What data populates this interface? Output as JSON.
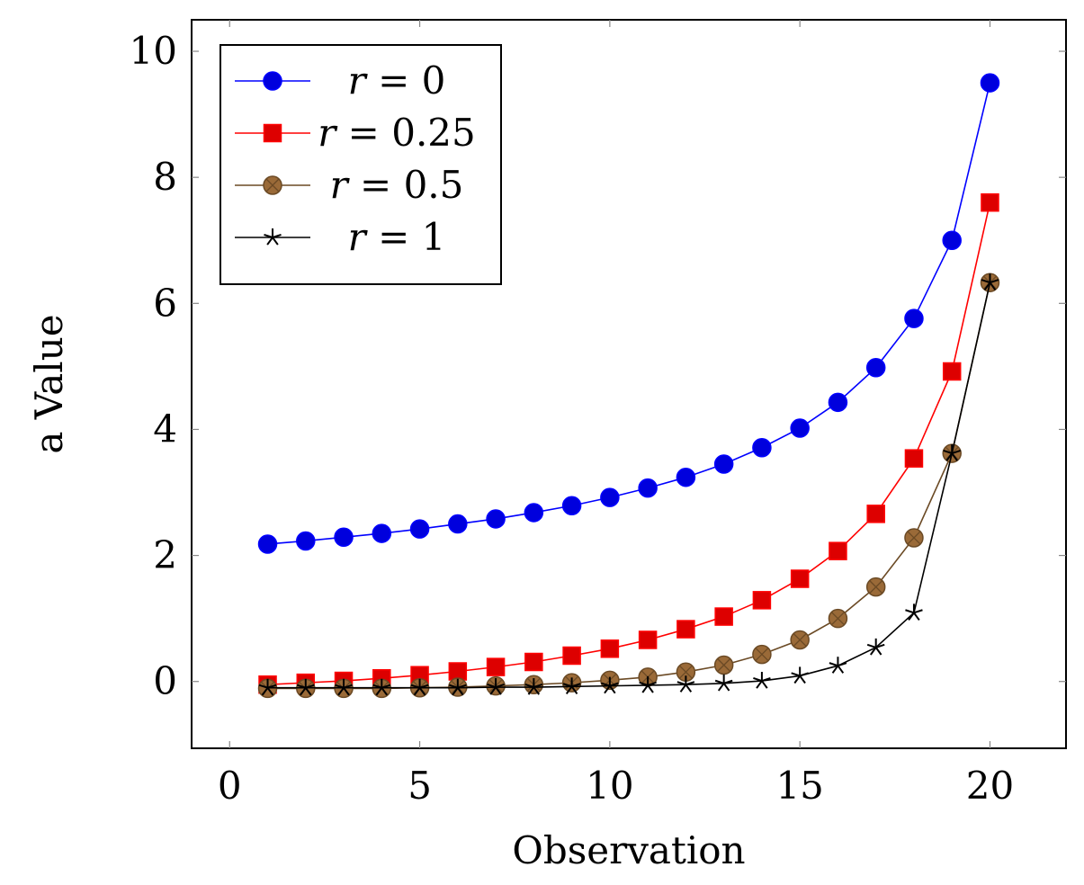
{
  "chart_data": {
    "type": "line",
    "title": "",
    "xlabel": "Observation",
    "ylabel": "a Value",
    "xlim": [
      -1,
      22
    ],
    "ylim": [
      -1.06,
      10.5
    ],
    "xticks": [
      0,
      5,
      10,
      15,
      20
    ],
    "yticks": [
      0,
      2,
      4,
      6,
      8,
      10
    ],
    "xtick_labels": [
      "0",
      "5",
      "10",
      "15",
      "20"
    ],
    "ytick_labels": [
      "0",
      "2",
      "4",
      "6",
      "8",
      "10"
    ],
    "grid": false,
    "legend_position": "top-left",
    "x": [
      1,
      2,
      3,
      4,
      5,
      6,
      7,
      8,
      9,
      10,
      11,
      12,
      13,
      14,
      15,
      16,
      17,
      18,
      19,
      20
    ],
    "series": [
      {
        "name": "r = 0",
        "label_var": "r",
        "label_value": "0",
        "color": "#0000ff",
        "marker_fill": "#0000dd",
        "marker": "circle",
        "values": [
          2.18,
          2.23,
          2.29,
          2.35,
          2.42,
          2.5,
          2.58,
          2.68,
          2.79,
          2.92,
          3.07,
          3.24,
          3.45,
          3.71,
          4.02,
          4.43,
          4.98,
          5.76,
          7.0,
          9.5
        ]
      },
      {
        "name": "r = 0.25",
        "label_var": "r",
        "label_value": "0.25",
        "color": "#ff0000",
        "marker_fill": "#dd0000",
        "marker": "square",
        "values": [
          -0.05,
          -0.02,
          0.01,
          0.05,
          0.1,
          0.16,
          0.23,
          0.31,
          0.41,
          0.52,
          0.66,
          0.83,
          1.03,
          1.29,
          1.63,
          2.07,
          2.66,
          3.54,
          4.92,
          7.6
        ]
      },
      {
        "name": "r = 0.5",
        "label_var": "r",
        "label_value": "0.5",
        "color": "#6b4a25",
        "marker_fill": "#9a6a38",
        "marker": "otimes",
        "values": [
          -0.11,
          -0.11,
          -0.11,
          -0.11,
          -0.1,
          -0.09,
          -0.07,
          -0.05,
          -0.02,
          0.02,
          0.07,
          0.15,
          0.26,
          0.43,
          0.66,
          1.0,
          1.5,
          2.28,
          3.62,
          6.33
        ]
      },
      {
        "name": "r = 1",
        "label_var": "r",
        "label_value": "1",
        "color": "#000000",
        "marker_fill": "#000000",
        "marker": "star",
        "values": [
          -0.1,
          -0.1,
          -0.1,
          -0.1,
          -0.1,
          -0.1,
          -0.09,
          -0.09,
          -0.08,
          -0.07,
          -0.06,
          -0.05,
          -0.03,
          0.01,
          0.09,
          0.25,
          0.54,
          1.09,
          3.62,
          6.33
        ]
      }
    ]
  }
}
